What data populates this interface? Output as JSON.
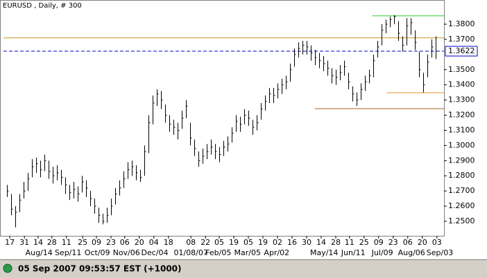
{
  "chart_data": {
    "type": "hlc",
    "title": "EURUSD , Daily, # 300",
    "status": "05 Sep 2007 09:53:57  EST (+1000)",
    "color": "#000000",
    "xlim": [
      -0.83,
      105
    ],
    "ylim": [
      1.24088,
      1.39368
    ],
    "yticks": [
      {
        "value": 1.25,
        "label": "1.2500"
      },
      {
        "value": 1.26,
        "label": "1.2600"
      },
      {
        "value": 1.27,
        "label": "1.2700"
      },
      {
        "value": 1.28,
        "label": "1.2800"
      },
      {
        "value": 1.29,
        "label": "1.2900"
      },
      {
        "value": 1.3,
        "label": "1.3000"
      },
      {
        "value": 1.31,
        "label": "1.3100"
      },
      {
        "value": 1.32,
        "label": "1.3200"
      },
      {
        "value": 1.33,
        "label": "1.3300"
      },
      {
        "value": 1.34,
        "label": "1.3400"
      },
      {
        "value": 1.35,
        "label": "1.3500"
      },
      {
        "value": 1.37,
        "label": "1.3700"
      },
      {
        "value": 1.38,
        "label": "1.3800"
      }
    ],
    "xticks": [
      {
        "value": 0.7,
        "label": "17"
      },
      {
        "value": 4.2,
        "label": "31"
      },
      {
        "value": 7.5,
        "label": "14"
      },
      {
        "value": 10.8,
        "label": "28"
      },
      {
        "value": 14.3,
        "label": "11"
      },
      {
        "value": 18.2,
        "label": "25"
      },
      {
        "value": 21.5,
        "label": "09"
      },
      {
        "value": 25,
        "label": "23"
      },
      {
        "value": 28.3,
        "label": "06"
      },
      {
        "value": 31.8,
        "label": "20"
      },
      {
        "value": 35.3,
        "label": "04"
      },
      {
        "value": 38.8,
        "label": "18"
      },
      {
        "value": 44.2,
        "label": "08"
      },
      {
        "value": 47.7,
        "label": "22"
      },
      {
        "value": 51,
        "label": "05"
      },
      {
        "value": 54.5,
        "label": "19"
      },
      {
        "value": 58,
        "label": "05"
      },
      {
        "value": 61.5,
        "label": "19"
      },
      {
        "value": 65,
        "label": "02"
      },
      {
        "value": 68.5,
        "label": "16"
      },
      {
        "value": 72,
        "label": "30"
      },
      {
        "value": 75.5,
        "label": "14"
      },
      {
        "value": 79,
        "label": "28"
      },
      {
        "value": 82.3,
        "label": "11"
      },
      {
        "value": 85.8,
        "label": "25"
      },
      {
        "value": 89.3,
        "label": "09"
      },
      {
        "value": 92.8,
        "label": "23"
      },
      {
        "value": 96.3,
        "label": "06"
      },
      {
        "value": 99.8,
        "label": "20"
      },
      {
        "value": 103.3,
        "label": "03"
      }
    ],
    "month_ticks": [
      {
        "value": 7.7,
        "label": "Aug/14"
      },
      {
        "value": 14.7,
        "label": "Sep/11"
      },
      {
        "value": 21.7,
        "label": "Oct/09"
      },
      {
        "value": 28.7,
        "label": "Nov/06"
      },
      {
        "value": 35.5,
        "label": "Dec/04"
      },
      {
        "value": 44.2,
        "label": "01/08/07"
      },
      {
        "value": 50.8,
        "label": "Feb/05"
      },
      {
        "value": 57.8,
        "label": "Mar/05"
      },
      {
        "value": 64.8,
        "label": "Apr/02"
      },
      {
        "value": 76.2,
        "label": "May/14"
      },
      {
        "value": 83.2,
        "label": "Jun/11"
      },
      {
        "value": 90.2,
        "label": "Jul/09"
      },
      {
        "value": 97.2,
        "label": "Aug/06"
      },
      {
        "value": 104,
        "label": "Sep/03"
      }
    ],
    "high": [
      1.274,
      1.268,
      1.26,
      1.268,
      1.276,
      1.282,
      1.291,
      1.292,
      1.29,
      1.294,
      1.29,
      1.286,
      1.287,
      1.284,
      1.279,
      1.274,
      1.276,
      1.273,
      1.28,
      1.277,
      1.27,
      1.265,
      1.259,
      1.255,
      1.259,
      1.265,
      1.272,
      1.277,
      1.283,
      1.289,
      1.29,
      1.287,
      1.284,
      1.3,
      1.32,
      1.333,
      1.337,
      1.336,
      1.327,
      1.32,
      1.317,
      1.315,
      1.323,
      1.33,
      1.315,
      1.304,
      1.296,
      1.298,
      1.301,
      1.304,
      1.301,
      1.299,
      1.303,
      1.306,
      1.312,
      1.32,
      1.319,
      1.324,
      1.323,
      1.317,
      1.32,
      1.328,
      1.333,
      1.338,
      1.338,
      1.341,
      1.344,
      1.346,
      1.354,
      1.364,
      1.368,
      1.369,
      1.369,
      1.366,
      1.363,
      1.361,
      1.359,
      1.356,
      1.351,
      1.35,
      1.353,
      1.356,
      1.348,
      1.339,
      1.335,
      1.341,
      1.346,
      1.35,
      1.36,
      1.369,
      1.38,
      1.383,
      1.385,
      1.386,
      1.382,
      1.372,
      1.384,
      1.384,
      1.376,
      1.362,
      1.348,
      1.36,
      1.37,
      1.372
    ],
    "low": [
      1.266,
      1.254,
      1.246,
      1.256,
      1.265,
      1.27,
      1.279,
      1.282,
      1.279,
      1.283,
      1.278,
      1.275,
      1.277,
      1.274,
      1.268,
      1.264,
      1.265,
      1.263,
      1.269,
      1.266,
      1.26,
      1.255,
      1.249,
      1.248,
      1.249,
      1.254,
      1.261,
      1.267,
      1.272,
      1.278,
      1.28,
      1.277,
      1.276,
      1.28,
      1.295,
      1.314,
      1.326,
      1.324,
      1.315,
      1.309,
      1.307,
      1.304,
      1.311,
      1.318,
      1.3,
      1.293,
      1.286,
      1.288,
      1.291,
      1.294,
      1.291,
      1.289,
      1.293,
      1.296,
      1.302,
      1.309,
      1.309,
      1.314,
      1.313,
      1.307,
      1.31,
      1.317,
      1.323,
      1.328,
      1.328,
      1.331,
      1.334,
      1.337,
      1.342,
      1.352,
      1.358,
      1.36,
      1.36,
      1.356,
      1.353,
      1.351,
      1.349,
      1.346,
      1.341,
      1.34,
      1.343,
      1.346,
      1.337,
      1.329,
      1.326,
      1.33,
      1.336,
      1.341,
      1.345,
      1.358,
      1.366,
      1.374,
      1.378,
      1.38,
      1.369,
      1.362,
      1.366,
      1.373,
      1.363,
      1.345,
      1.335,
      1.345,
      1.358,
      1.357
    ],
    "close": [
      1.27,
      1.258,
      1.256,
      1.264,
      1.27,
      1.278,
      1.286,
      1.288,
      1.284,
      1.29,
      1.283,
      1.28,
      1.282,
      1.279,
      1.274,
      1.269,
      1.271,
      1.268,
      1.276,
      1.272,
      1.265,
      1.26,
      1.254,
      1.25,
      1.254,
      1.26,
      1.268,
      1.272,
      1.278,
      1.284,
      1.286,
      1.282,
      1.279,
      1.296,
      1.315,
      1.328,
      1.334,
      1.33,
      1.32,
      1.314,
      1.312,
      1.31,
      1.318,
      1.326,
      1.305,
      1.298,
      1.29,
      1.293,
      1.296,
      1.299,
      1.296,
      1.294,
      1.299,
      1.301,
      1.308,
      1.316,
      1.314,
      1.32,
      1.318,
      1.312,
      1.315,
      1.324,
      1.329,
      1.334,
      1.333,
      1.337,
      1.34,
      1.342,
      1.35,
      1.36,
      1.364,
      1.366,
      1.365,
      1.361,
      1.358,
      1.356,
      1.354,
      1.351,
      1.346,
      1.345,
      1.348,
      1.352,
      1.342,
      1.334,
      1.33,
      1.337,
      1.342,
      1.346,
      1.356,
      1.365,
      1.376,
      1.38,
      1.383,
      1.385,
      1.374,
      1.366,
      1.379,
      1.381,
      1.368,
      1.35,
      1.34,
      1.355,
      1.365,
      1.3622
    ],
    "last": {
      "value": 1.3622,
      "label": "1.3622"
    },
    "last_color": "#0000cc",
    "levels": [
      {
        "value": 1.371,
        "from": -0.83,
        "color": "#c8961e"
      },
      {
        "value": 1.3855,
        "from": 87.8,
        "color": "#22cc22"
      },
      {
        "value": 1.3348,
        "from": 91.2,
        "color": "#e09020"
      },
      {
        "value": 1.3243,
        "from": 74,
        "color": "#a06020"
      }
    ]
  }
}
